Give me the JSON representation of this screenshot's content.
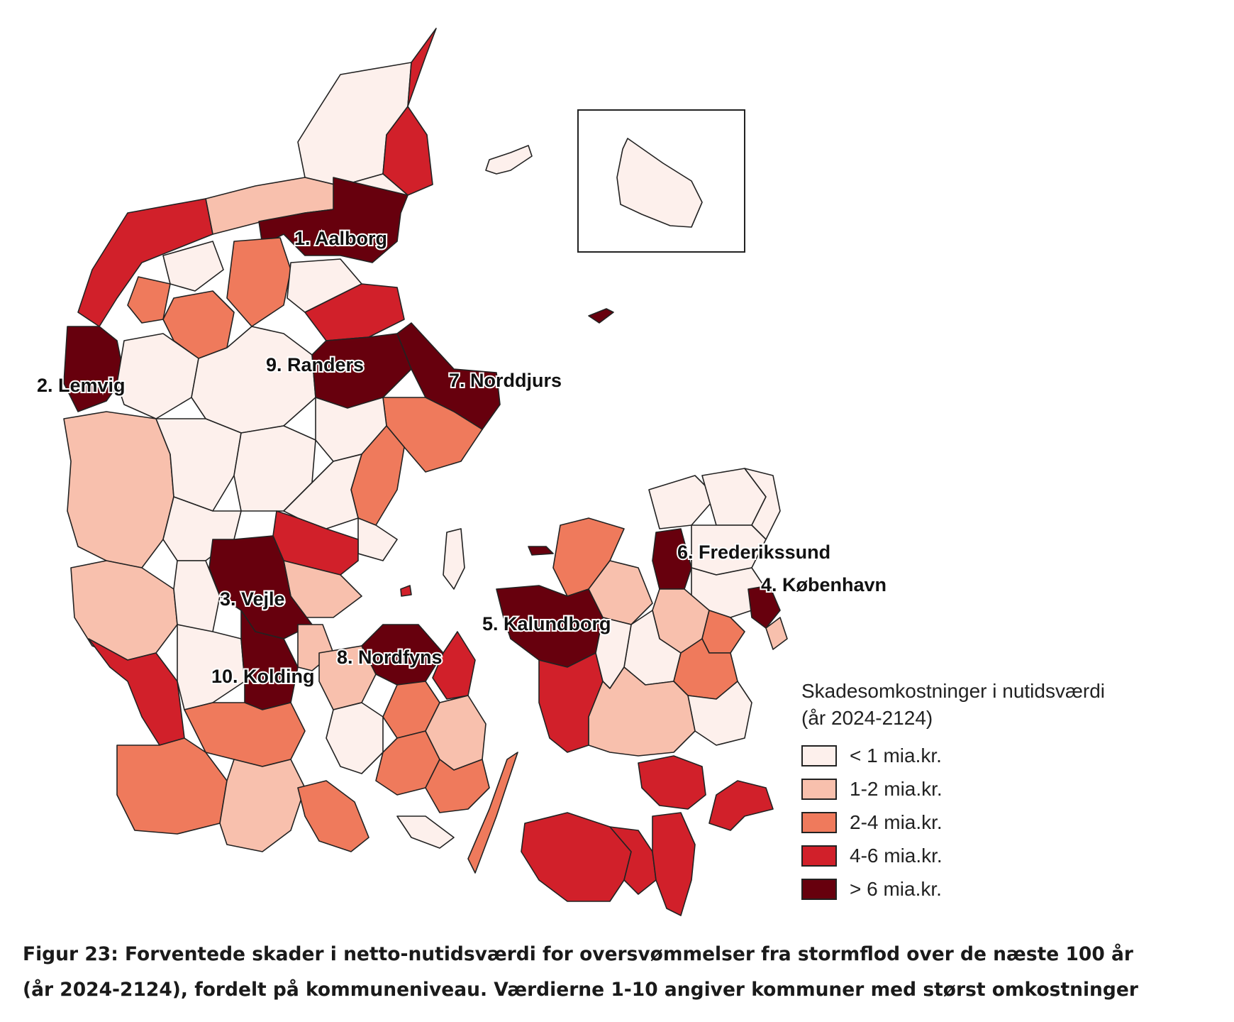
{
  "colors": {
    "lt1": "#fdf0ec",
    "c1_2": "#f8c0ad",
    "c2_4": "#ef7a5c",
    "c4_6": "#d1202a",
    "gt6": "#67000d"
  },
  "labels": [
    "1. Aalborg",
    "2. Lemvig",
    "3. Vejle",
    "4. København",
    "5. Kalundborg",
    "6. Frederikssund",
    "7. Norddjurs",
    "8. Nordfyns",
    "9. Randers",
    "10. Kolding"
  ],
  "legend": {
    "title_line1": "Skadesomkostninger i  nutidsværdi",
    "title_line2": "(år 2024-2124)",
    "items": [
      {
        "label": "< 1 mia.kr.",
        "color": "#fdf0ec"
      },
      {
        "label": "1-2 mia.kr.",
        "color": "#f8c0ad"
      },
      {
        "label": "2-4 mia.kr.",
        "color": "#ef7a5c"
      },
      {
        "label": "4-6 mia.kr.",
        "color": "#d1202a"
      },
      {
        "label": "> 6 mia.kr.",
        "color": "#67000d"
      }
    ]
  },
  "caption": {
    "line1": "Figur 23: Forventede skader i netto-nutidsværdi for oversvømmelser fra stormflod over de næste 100 år",
    "line2": "(år 2024-2124), fordelt på kommuneniveau. Værdierne 1-10 angiver kommuner med størst omkostninger"
  }
}
